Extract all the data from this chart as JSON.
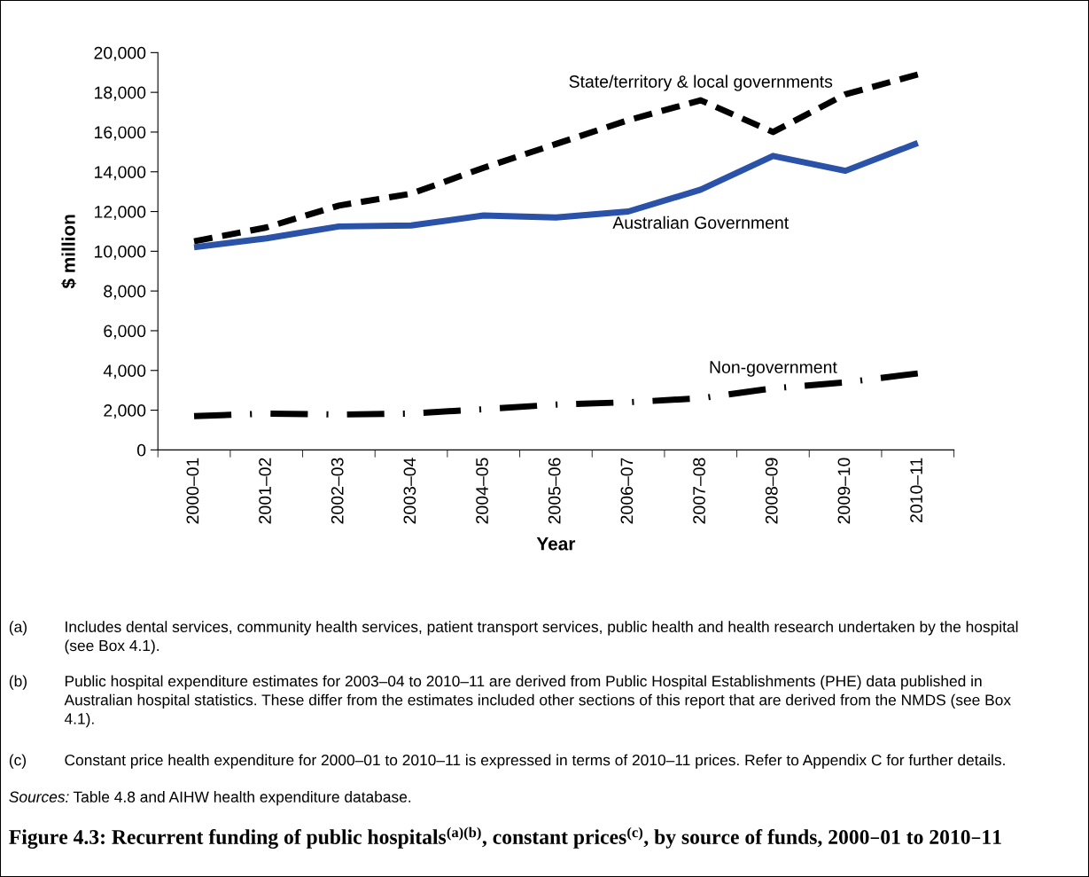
{
  "chart_data": {
    "type": "line",
    "title": "Figure 4.3: Recurrent funding of public hospitals$^{(a)(b)}$, constant prices$^{(c)}$, by source of funds, 2000–01 to 2010–11",
    "xlabel": "Year",
    "ylabel": "$ million",
    "categories": [
      "2000–01",
      "2001–02",
      "2002–03",
      "2003–04",
      "2004–05",
      "2005–06",
      "2006–07",
      "2007–08",
      "2008–09",
      "2009–10",
      "2010–11"
    ],
    "series": [
      {
        "name": "State/territory & local governments",
        "color": "#000000",
        "line_style": "dashed",
        "values": [
          10500,
          11200,
          12300,
          12900,
          14200,
          15400,
          16600,
          17600,
          16000,
          17900,
          18900
        ]
      },
      {
        "name": "Australian Government",
        "color": "#2a52a8",
        "line_style": "solid",
        "values": [
          10200,
          10650,
          11250,
          11300,
          11800,
          11700,
          12000,
          13100,
          14800,
          14050,
          15450
        ]
      },
      {
        "name": "Non-government",
        "color": "#000000",
        "line_style": "dashdot",
        "values": [
          1700,
          1830,
          1780,
          1830,
          2050,
          2280,
          2400,
          2600,
          3100,
          3400,
          3850
        ]
      }
    ],
    "ylim": [
      0,
      20000
    ],
    "yticks": [
      {
        "value": 0,
        "label": "0"
      },
      {
        "value": 2000,
        "label": "2,000"
      },
      {
        "value": 4000,
        "label": "4,000"
      },
      {
        "value": 6000,
        "label": "6,000"
      },
      {
        "value": 8000,
        "label": "8,000"
      },
      {
        "value": 10000,
        "label": "10,000"
      },
      {
        "value": 12000,
        "label": "12,000"
      },
      {
        "value": 14000,
        "label": "14,000"
      },
      {
        "value": 16000,
        "label": "16,000"
      },
      {
        "value": 18000,
        "label": "18,000"
      },
      {
        "value": 20000,
        "label": "20,000"
      }
    ],
    "grid": false,
    "legend": false,
    "marker": "none",
    "annotations": [
      "(a) Includes dental services, community health services, patient transport services, public health and health research undertaken by the hospital (see Box 4.1).",
      "(b) Public hospital expenditure estimates for 2003–04 to 2010–11 are derived from Public Hospital Establishments (PHE) data published in Australian hospital statistics. These differ from the estimates included other sections of this report that are derived from the NMDS (see Box 4.1).",
      "(c) Constant price health expenditure for 2000–01 to 2010–11 is expressed in terms of 2010–11 prices. Refer to Appendix C for further details.",
      "Sources: Table 4.8 and AIHW health expenditure database."
    ]
  }
}
